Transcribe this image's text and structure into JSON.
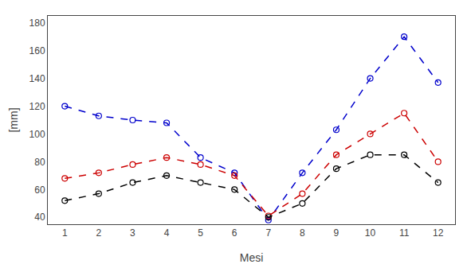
{
  "chart_data": {
    "type": "line",
    "xlabel": "Mesi",
    "ylabel": "[mm]",
    "x": [
      1,
      2,
      3,
      4,
      5,
      6,
      7,
      8,
      9,
      10,
      11,
      12
    ],
    "series": [
      {
        "color": "#0000cc",
        "values": [
          120,
          113,
          110,
          108,
          83,
          72,
          38,
          72,
          103,
          140,
          170,
          137
        ]
      },
      {
        "color": "#cc0000",
        "values": [
          68,
          72,
          78,
          83,
          78,
          70,
          41,
          57,
          85,
          100,
          115,
          80
        ]
      },
      {
        "color": "#000000",
        "values": [
          52,
          57,
          65,
          70,
          65,
          60,
          40,
          50,
          75,
          85,
          85,
          65
        ]
      }
    ],
    "marker": "open circle",
    "line_style": "dashed",
    "xlim": [
      0.5,
      12.5
    ],
    "xticks": [
      1,
      2,
      3,
      4,
      5,
      6,
      7,
      8,
      9,
      10,
      11,
      12
    ],
    "ylim": [
      35,
      185
    ],
    "yticks": [
      40,
      60,
      80,
      100,
      120,
      140,
      160,
      180
    ],
    "grid": false
  }
}
